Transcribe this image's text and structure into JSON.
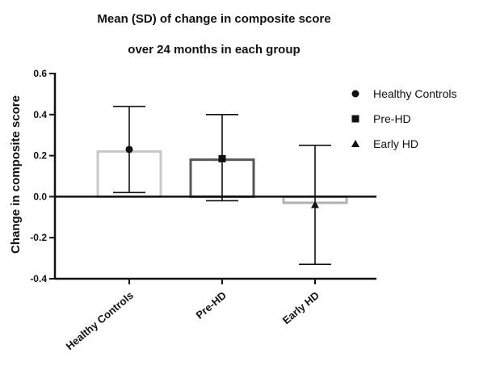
{
  "chart_data": {
    "type": "bar",
    "title_lines": [
      "Mean (SD) of change in composite score",
      "over 24 months in each group"
    ],
    "ylabel": "Change in composite score",
    "xlabel": "",
    "categories": [
      "Healthy Controls",
      "Pre-HD",
      "Early HD"
    ],
    "values": [
      0.22,
      0.18,
      -0.03
    ],
    "point_means": [
      0.23,
      0.185,
      -0.04
    ],
    "sd_upper": [
      0.44,
      0.4,
      0.25
    ],
    "sd_lower": [
      0.02,
      -0.02,
      -0.33
    ],
    "marker_shapes": [
      "circle",
      "square",
      "triangle"
    ],
    "bar_colors": [
      "#c8c8c8",
      "#555555",
      "#b0b0b0"
    ],
    "ylim": [
      -0.4,
      0.6
    ],
    "yticks": [
      -0.4,
      -0.2,
      0.0,
      0.2,
      0.4,
      0.6
    ],
    "ytick_labels": [
      "-0.4",
      "-0.2",
      "0.0",
      "0.2",
      "0.4",
      "0.6"
    ],
    "legend_position": "right",
    "legend": [
      {
        "label": "Healthy Controls",
        "marker": "circle"
      },
      {
        "label": "Pre-HD",
        "marker": "square"
      },
      {
        "label": "Early HD",
        "marker": "triangle"
      }
    ]
  }
}
